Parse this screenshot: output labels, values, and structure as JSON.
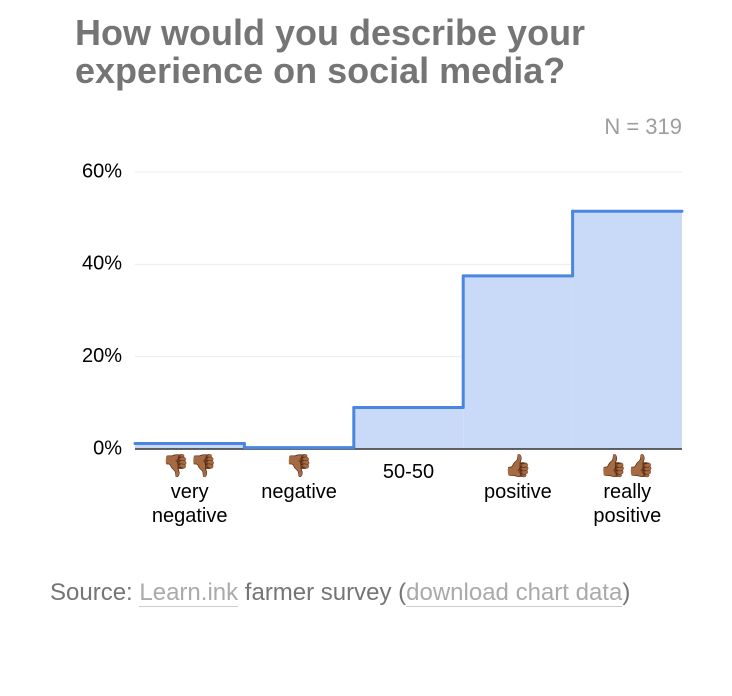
{
  "chart_data": {
    "type": "step-area",
    "title": "How would you describe your experience on social media?",
    "subtitle": "N = 319",
    "categories": [
      "very negative",
      "negative",
      "50-50",
      "positive",
      "really positive"
    ],
    "category_icons": [
      "👎🏾👎🏾",
      "👎🏾",
      null,
      "👍🏾",
      "👍🏾👍🏾"
    ],
    "values": [
      1.2,
      0.3,
      9,
      37.5,
      51.5
    ],
    "color": "#4a86e0",
    "fill": "#c9daf8",
    "ylim": [
      0,
      60
    ],
    "yticks": [
      {
        "value": 0,
        "label": "0%"
      },
      {
        "value": 20,
        "label": "20%"
      },
      {
        "value": 40,
        "label": "40%"
      },
      {
        "value": 60,
        "label": "60%"
      }
    ],
    "grid": true
  },
  "source": {
    "prefix": "Source:",
    "link1": "Learn.ink",
    "middle": "farmer survey (",
    "link2": "download chart data",
    "suffix": ")"
  }
}
